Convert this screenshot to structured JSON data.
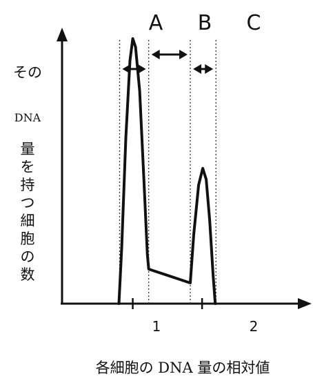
{
  "chart_data": {
    "type": "line",
    "xlabel": "各細胞の DNA 量の相対値",
    "ylabel_lines": [
      "その",
      "DNA",
      "量",
      "を",
      "持",
      "つ",
      "細",
      "胞",
      "の",
      "数"
    ],
    "x_ticks": [
      {
        "value": 1,
        "label": "1"
      },
      {
        "value": 2,
        "label": "2"
      }
    ],
    "regions": [
      {
        "label": "A",
        "from": 0.81,
        "to": 1.23
      },
      {
        "label": "B",
        "from": 1.23,
        "to": 1.83
      },
      {
        "label": "C",
        "from": 1.83,
        "to": 2.2
      }
    ],
    "xlim": [
      -0.02,
      3.6
    ],
    "ylim": [
      0,
      100
    ],
    "series": [
      {
        "points": [
          [
            0.8,
            0
          ],
          [
            0.84,
            20
          ],
          [
            0.9,
            60
          ],
          [
            0.96,
            88
          ],
          [
            1.0,
            96
          ],
          [
            1.04,
            93
          ],
          [
            1.1,
            77
          ],
          [
            1.16,
            45
          ],
          [
            1.21,
            18
          ],
          [
            1.23,
            12.5
          ],
          [
            1.83,
            7.5
          ],
          [
            1.88,
            25
          ],
          [
            1.95,
            43
          ],
          [
            2.01,
            49
          ],
          [
            2.06,
            45
          ],
          [
            2.11,
            30
          ],
          [
            2.16,
            10
          ],
          [
            2.19,
            0
          ]
        ]
      }
    ]
  }
}
